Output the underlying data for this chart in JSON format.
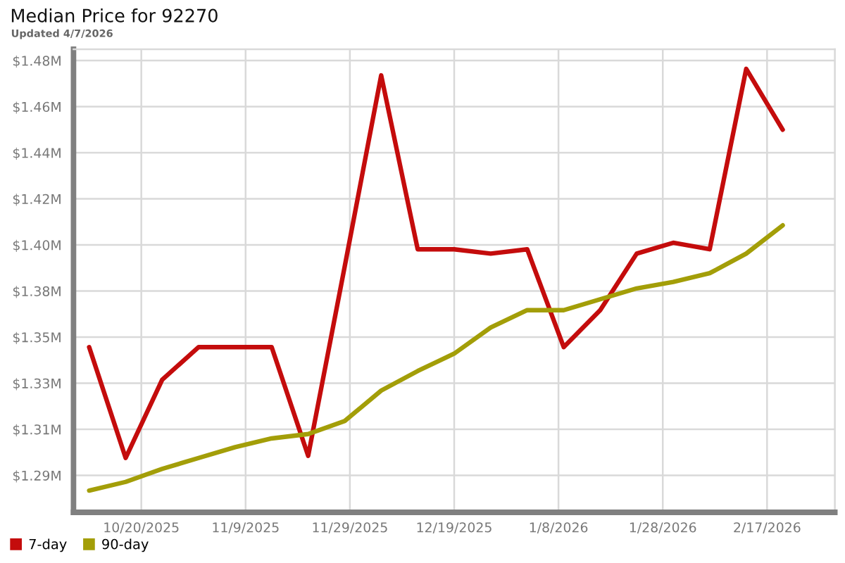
{
  "chart_data": {
    "type": "line",
    "title": "Median Price for 92270",
    "subtitle": "Updated 4/7/2026",
    "x": [
      "2025-10-10",
      "2025-10-17",
      "2025-10-24",
      "2025-10-31",
      "2025-11-07",
      "2025-11-14",
      "2025-11-21",
      "2025-11-28",
      "2025-12-05",
      "2025-12-12",
      "2025-12-19",
      "2025-12-26",
      "2026-01-02",
      "2026-01-09",
      "2026-01-16",
      "2026-01-23",
      "2026-01-30",
      "2026-02-06",
      "2026-02-13",
      "2026-02-20"
    ],
    "series": [
      {
        "name": "7-day",
        "color": "#c40c0c",
        "values": [
          1.35,
          1.299,
          1.335,
          1.35,
          1.35,
          1.35,
          1.3,
          1.387,
          1.475,
          1.395,
          1.395,
          1.393,
          1.395,
          1.35,
          1.367,
          1.393,
          1.398,
          1.395,
          1.478,
          1.45
        ]
      },
      {
        "name": "90-day",
        "color": "#a39e08",
        "values": [
          1.284,
          1.288,
          1.294,
          1.299,
          1.304,
          1.308,
          1.31,
          1.316,
          1.33,
          1.339,
          1.347,
          1.359,
          1.367,
          1.367,
          1.372,
          1.377,
          1.38,
          1.384,
          1.393,
          1.406
        ]
      }
    ],
    "xlim": [
      "2025-10-07",
      "2026-03-02"
    ],
    "xticks": [
      {
        "value": "2025-10-20",
        "label": "10/20/2025"
      },
      {
        "value": "2025-11-09",
        "label": "11/9/2025"
      },
      {
        "value": "2025-11-29",
        "label": "11/29/2025"
      },
      {
        "value": "2025-12-19",
        "label": "12/19/2025"
      },
      {
        "value": "2026-01-08",
        "label": "1/8/2026"
      },
      {
        "value": "2026-01-28",
        "label": "1/28/2026"
      },
      {
        "value": "2026-02-17",
        "label": "2/17/2026"
      }
    ],
    "ylim": [
      1.274,
      1.487
    ],
    "yticks": [
      {
        "value": 1.291,
        "label": "$1.29M"
      },
      {
        "value": 1.3122,
        "label": "$1.31M"
      },
      {
        "value": 1.3334,
        "label": "$1.33M"
      },
      {
        "value": 1.3546,
        "label": "$1.35M"
      },
      {
        "value": 1.3758,
        "label": "$1.38M"
      },
      {
        "value": 1.397,
        "label": "$1.40M"
      },
      {
        "value": 1.4182,
        "label": "$1.42M"
      },
      {
        "value": 1.4394,
        "label": "$1.44M"
      },
      {
        "value": 1.4606,
        "label": "$1.46M"
      },
      {
        "value": 1.4818,
        "label": "$1.48M"
      }
    ],
    "grid": true,
    "legend": "bottom left",
    "line_style": "solid"
  }
}
